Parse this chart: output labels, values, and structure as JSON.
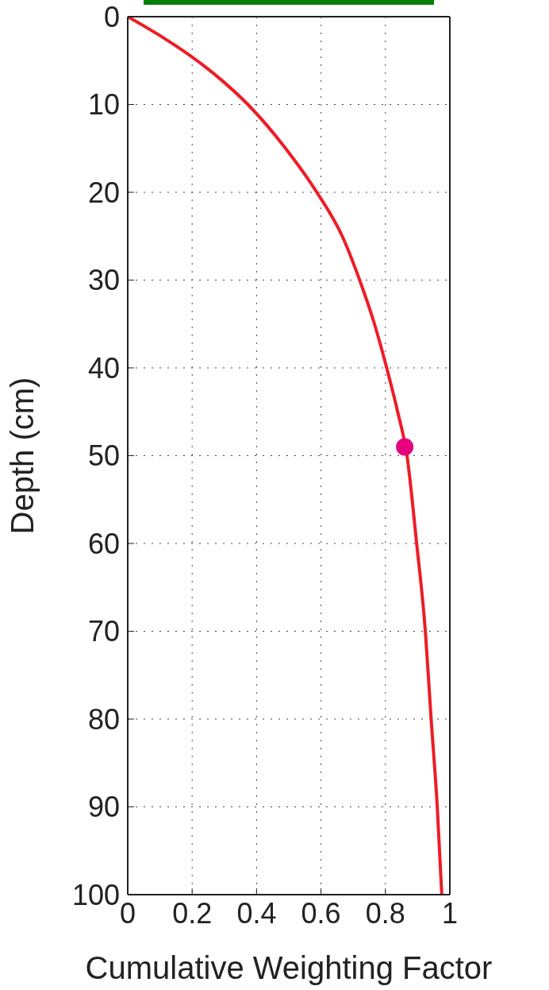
{
  "chart_data": {
    "type": "line",
    "xlabel": "Cumulative Weighting Factor",
    "ylabel": "Depth (cm)",
    "xlim": [
      0,
      1
    ],
    "xticks": [
      0,
      0.2,
      0.4,
      0.6,
      0.8,
      1
    ],
    "ylim": [
      100,
      0
    ],
    "yticks": [
      0,
      10,
      20,
      30,
      40,
      50,
      60,
      70,
      80,
      90,
      100
    ],
    "grid": true,
    "legend": false,
    "series": [
      {
        "color": "#ee1c25",
        "marker": "none",
        "line_style": "solid",
        "x": [
          0,
          0.115,
          0.215,
          0.3,
          0.373,
          0.49,
          0.587,
          0.666,
          0.72,
          0.766,
          0.804,
          0.838,
          0.867,
          0.897,
          0.924,
          0.942,
          0.961,
          0.975
        ],
        "values": [
          0,
          2.5,
          5,
          7.5,
          10,
          15,
          20,
          25,
          30,
          35,
          40,
          45,
          50,
          60,
          70,
          80,
          90,
          100
        ]
      },
      {
        "type": "scatter",
        "color": "#e6007e",
        "marker": "circle",
        "x": [
          0.86
        ],
        "values": [
          49
        ]
      }
    ]
  }
}
